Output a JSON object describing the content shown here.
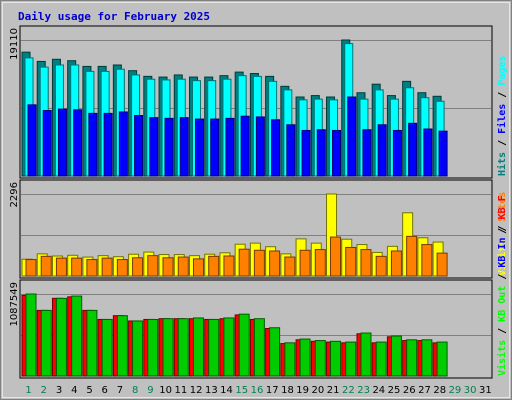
{
  "chart_data": {
    "type": "bar",
    "title": "Daily usage for February 2025",
    "days": [
      "1",
      "2",
      "3",
      "4",
      "5",
      "6",
      "7",
      "8",
      "9",
      "10",
      "11",
      "12",
      "13",
      "14",
      "15",
      "16",
      "17",
      "18",
      "19",
      "20",
      "21",
      "22",
      "23",
      "24",
      "25",
      "26",
      "27",
      "28",
      "29",
      "30",
      "31"
    ],
    "weekend_days": [
      "1",
      "2",
      "8",
      "9",
      "15",
      "16",
      "22",
      "23",
      "29",
      "30"
    ],
    "panels": [
      {
        "name": "hits-files-pages",
        "scale_label": "19110",
        "max": 19110,
        "side_labels": [
          {
            "text": "Hits",
            "color": "#008080"
          },
          {
            "text": " / ",
            "color": "#000000"
          },
          {
            "text": "Files",
            "color": "#0000ff"
          },
          {
            "text": " / ",
            "color": "#000000"
          },
          {
            "text": "Pages",
            "color": "#00ffff"
          }
        ],
        "series": [
          {
            "name": "Hits",
            "color": "#008080",
            "values": [
              17400,
              16100,
              16400,
              16200,
              15400,
              15400,
              15600,
              14800,
              14000,
              13900,
              14200,
              13900,
              13900,
              14100,
              14600,
              14400,
              14000,
              12600,
              11100,
              11300,
              11100,
              19110,
              11700,
              12900,
              11300,
              13300,
              11700,
              11200,
              0,
              0,
              0
            ]
          },
          {
            "name": "Files",
            "color": "#00ffff",
            "values": [
              16600,
              15300,
              15600,
              15600,
              14700,
              14700,
              15000,
              14200,
              13600,
              13500,
              13600,
              13400,
              13400,
              13600,
              14100,
              14000,
              13300,
              12100,
              10700,
              10800,
              10700,
              18600,
              10800,
              12100,
              10800,
              12400,
              11000,
              10500,
              0,
              0,
              0
            ]
          },
          {
            "name": "Pages",
            "color": "#0000ff",
            "values": [
              10000,
              9200,
              9400,
              9300,
              8800,
              8800,
              9000,
              8500,
              8200,
              8100,
              8200,
              8000,
              8000,
              8100,
              8400,
              8300,
              7900,
              7200,
              6400,
              6500,
              6400,
              11100,
              6500,
              7200,
              6400,
              7400,
              6600,
              6300,
              0,
              0,
              0
            ]
          }
        ]
      },
      {
        "name": "visits-sites",
        "scale_label": "2296",
        "max": 2296,
        "side_labels": [
          {
            "text": "Visits",
            "color": "#ffff00"
          },
          {
            "text": " / ",
            "color": "#000000"
          },
          {
            "text": "Sites",
            "color": "#ff8000"
          }
        ],
        "series": [
          {
            "name": "Visits",
            "color": "#ffff00",
            "values": [
              470,
              620,
              560,
              580,
              530,
              570,
              540,
              610,
              670,
              600,
              600,
              570,
              610,
              650,
              890,
              920,
              820,
              620,
              1040,
              920,
              2296,
              1030,
              880,
              660,
              830,
              1770,
              1070,
              950,
              0,
              0,
              0
            ]
          },
          {
            "name": "Sites",
            "color": "#ff8000",
            "values": [
              460,
              550,
              500,
              500,
              460,
              500,
              460,
              510,
              570,
              510,
              530,
              480,
              550,
              560,
              750,
              720,
              700,
              530,
              720,
              740,
              1090,
              800,
              740,
              550,
              700,
              1110,
              880,
              640,
              0,
              0,
              0
            ]
          }
        ]
      },
      {
        "name": "kbf-kbin-kbout",
        "scale_label": "1087549",
        "max": 1087549,
        "side_labels": [
          {
            "text": "Visits",
            "color": "#00ff00"
          },
          {
            "text": " / ",
            "color": "#000000"
          },
          {
            "text": "KB Out",
            "color": "#00ff00"
          },
          {
            "text": " / ",
            "color": "#000000"
          },
          {
            "text": "KB In",
            "color": "#0000ff"
          },
          {
            "text": " / ",
            "color": "#000000"
          },
          {
            "text": "KB F",
            "color": "#ff0000"
          }
        ],
        "series": [
          {
            "name": "KB F",
            "color": "#ff0000",
            "values": [
              1070000,
              870000,
              1030000,
              1050000,
              870000,
              750000,
              800000,
              730000,
              750000,
              760000,
              760000,
              760000,
              750000,
              760000,
              810000,
              750000,
              630000,
              430000,
              480000,
              460000,
              450000,
              440000,
              560000,
              440000,
              520000,
              470000,
              470000,
              440000,
              0,
              0,
              0
            ]
          },
          {
            "name": "KB Out",
            "color": "#00cc00",
            "values": [
              1087549,
              870000,
              1030000,
              1060000,
              870000,
              750000,
              800000,
              730000,
              750000,
              760000,
              760000,
              770000,
              750000,
              770000,
              820000,
              760000,
              640000,
              440000,
              490000,
              470000,
              460000,
              450000,
              570000,
              450000,
              530000,
              480000,
              480000,
              450000,
              0,
              0,
              0
            ]
          }
        ]
      }
    ],
    "colors": {
      "background": "#c0c0c0",
      "plot": "#c0c0c0",
      "title": "#0000cc",
      "weekday_label": "#000000",
      "weekend_label": "#00804f"
    }
  }
}
